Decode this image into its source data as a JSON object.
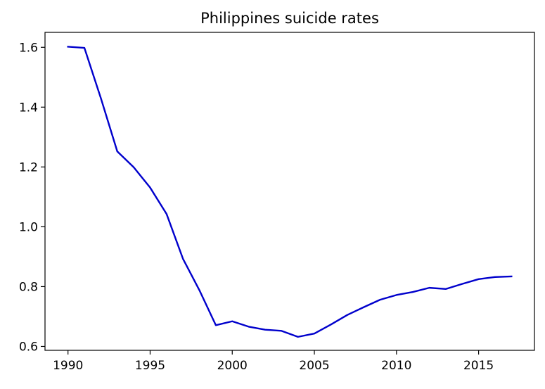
{
  "chart_data": {
    "type": "line",
    "title": "Philippines suicide rates",
    "xlabel": "",
    "ylabel": "",
    "xlim": [
      1988.6,
      2018.4
    ],
    "ylim": [
      0.587,
      1.65
    ],
    "x_ticks": [
      1990,
      1995,
      2000,
      2005,
      2010,
      2015
    ],
    "y_ticks": [
      0.6,
      0.8,
      1.0,
      1.2,
      1.4,
      1.6
    ],
    "x_tick_labels": [
      "1990",
      "1995",
      "2000",
      "2005",
      "2010",
      "2015"
    ],
    "y_tick_labels": [
      "0.6",
      "0.8",
      "1.0",
      "1.2",
      "1.4",
      "1.6"
    ],
    "grid": false,
    "line_color": "#0000cc",
    "series": [
      {
        "x": [
          1990,
          1991,
          1992,
          1993,
          1994,
          1995,
          1996,
          1997,
          1998,
          1999,
          2000,
          2001,
          2002,
          2003,
          2004,
          2005,
          2006,
          2007,
          2008,
          2009,
          2010,
          2011,
          2012,
          2013,
          2014,
          2015,
          2016,
          2017
        ],
        "values": [
          1.602,
          1.598,
          1.43,
          1.252,
          1.199,
          1.131,
          1.043,
          0.893,
          0.788,
          0.671,
          0.684,
          0.666,
          0.656,
          0.652,
          0.632,
          0.643,
          0.673,
          0.705,
          0.731,
          0.756,
          0.772,
          0.782,
          0.796,
          0.792,
          0.809,
          0.825,
          0.832,
          0.834
        ]
      }
    ]
  }
}
